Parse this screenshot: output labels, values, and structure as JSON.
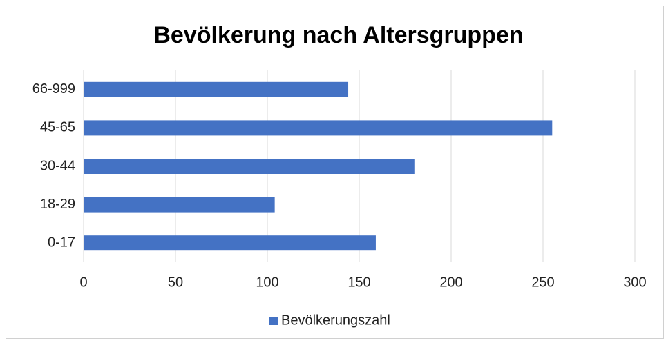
{
  "chart_data": {
    "type": "barh",
    "title": "Bevölkerung nach Altersgruppen",
    "categories": [
      "0-17",
      "18-29",
      "30-44",
      "45-65",
      "66-999"
    ],
    "series": [
      {
        "name": "Bevölkerungszahl",
        "color": "#4472c4",
        "values": [
          159,
          104,
          180,
          255,
          144
        ]
      }
    ],
    "xlim": [
      0,
      300
    ],
    "xticks": [
      0,
      50,
      100,
      150,
      200,
      250,
      300
    ],
    "grid": true,
    "legend": "bottom"
  }
}
